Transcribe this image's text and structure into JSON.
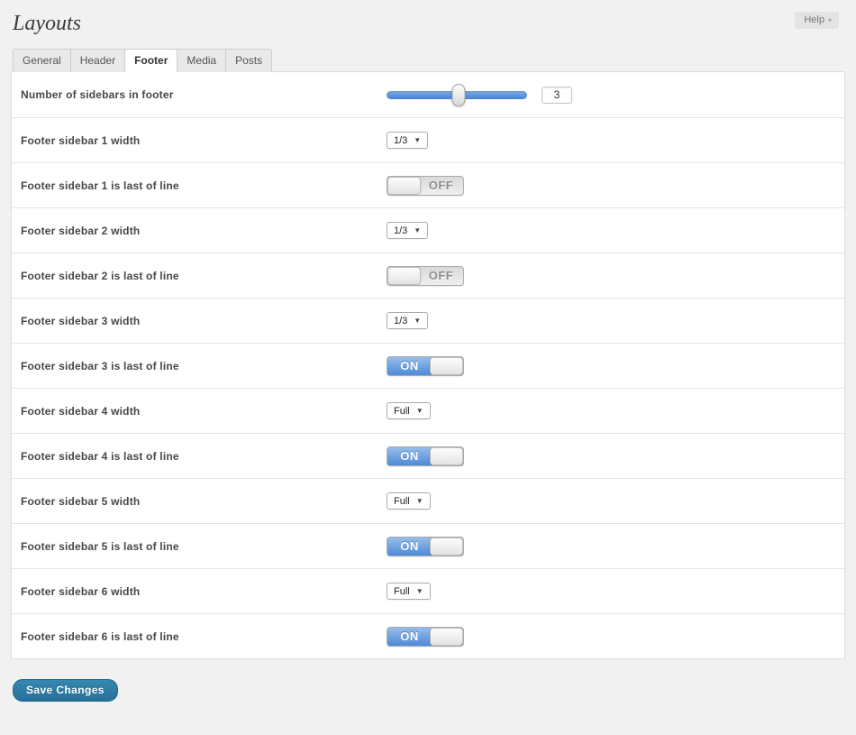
{
  "header": {
    "title": "Layouts",
    "help": {
      "label": "Help",
      "arrow_icon": "▾"
    }
  },
  "tabs": [
    {
      "label": "General",
      "active": false
    },
    {
      "label": "Header",
      "active": false
    },
    {
      "label": "Footer",
      "active": true
    },
    {
      "label": "Media",
      "active": false
    },
    {
      "label": "Posts",
      "active": false
    }
  ],
  "settings": {
    "slider_row": {
      "label": "Number of sidebars in footer",
      "value": "3",
      "thumb_left": "51%"
    },
    "select_arrow_icon": "▼",
    "rows": [
      {
        "label": "Footer sidebar 1 width",
        "type": "select",
        "value": "1/3"
      },
      {
        "label": "Footer sidebar 1 is last of line",
        "type": "toggle",
        "state": "off",
        "text": "OFF"
      },
      {
        "label": "Footer sidebar 2 width",
        "type": "select",
        "value": "1/3"
      },
      {
        "label": "Footer sidebar 2 is last of line",
        "type": "toggle",
        "state": "off",
        "text": "OFF"
      },
      {
        "label": "Footer sidebar 3 width",
        "type": "select",
        "value": "1/3"
      },
      {
        "label": "Footer sidebar 3 is last of line",
        "type": "toggle",
        "state": "on",
        "text": "ON"
      },
      {
        "label": "Footer sidebar 4 width",
        "type": "select",
        "value": "Full"
      },
      {
        "label": "Footer sidebar 4 is last of line",
        "type": "toggle",
        "state": "on",
        "text": "ON"
      },
      {
        "label": "Footer sidebar 5 width",
        "type": "select",
        "value": "Full"
      },
      {
        "label": "Footer sidebar 5 is last of line",
        "type": "toggle",
        "state": "on",
        "text": "ON"
      },
      {
        "label": "Footer sidebar 6 width",
        "type": "select",
        "value": "Full"
      },
      {
        "label": "Footer sidebar 6 is last of line",
        "type": "toggle",
        "state": "on",
        "text": "ON"
      }
    ]
  },
  "footer": {
    "save_button": "Save Changes"
  },
  "colors": {
    "page_background": "#f1f1f1",
    "accent_blue": "#4a86d6",
    "toggle_on_blue": "#4e8ad8",
    "save_button_blue": "#2d7ea7"
  }
}
